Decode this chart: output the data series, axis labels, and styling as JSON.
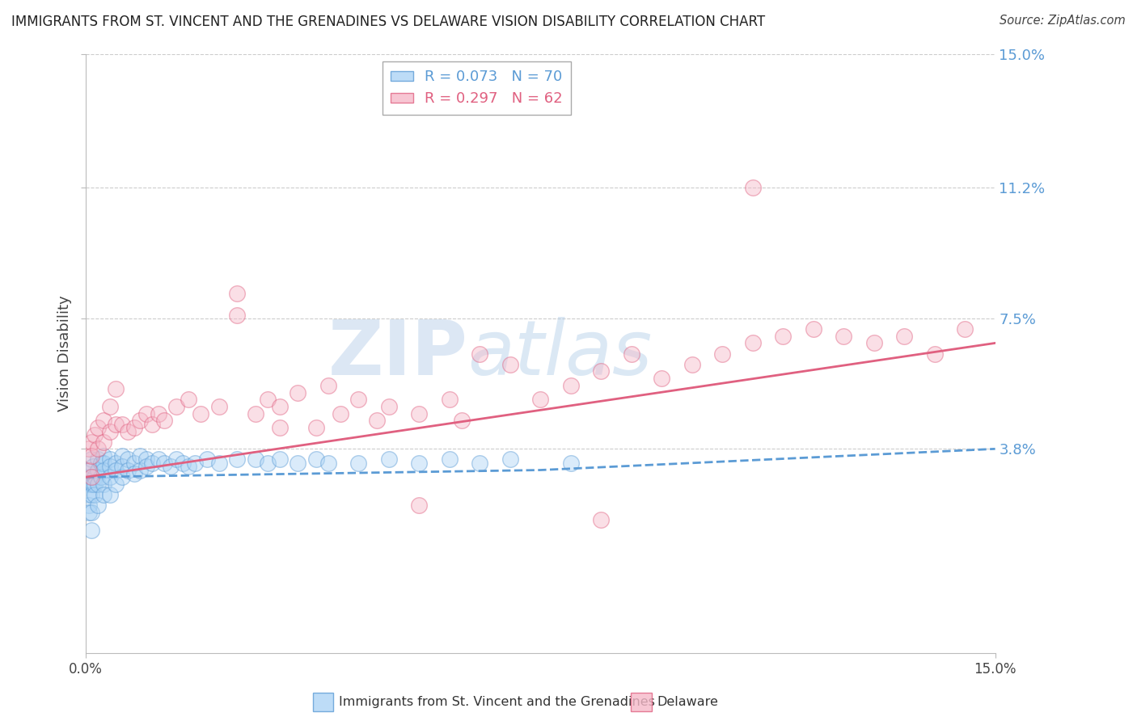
{
  "title": "IMMIGRANTS FROM ST. VINCENT AND THE GRENADINES VS DELAWARE VISION DISABILITY CORRELATION CHART",
  "source": "Source: ZipAtlas.com",
  "ylabel": "Vision Disability",
  "xmin": 0.0,
  "xmax": 0.15,
  "ymin": -0.02,
  "ymax": 0.15,
  "yticks": [
    0.038,
    0.075,
    0.112,
    0.15
  ],
  "ytick_labels": [
    "3.8%",
    "7.5%",
    "11.2%",
    "15.0%"
  ],
  "xticks": [
    0.0,
    0.15
  ],
  "xtick_labels": [
    "0.0%",
    "15.0%"
  ],
  "legend_label_blue": "R = 0.073   N = 70",
  "legend_label_pink": "R = 0.297   N = 62",
  "legend_bottom_blue": "Immigrants from St. Vincent and the Grenadines",
  "legend_bottom_pink": "Delaware",
  "blue_scatter_x": [
    0.0005,
    0.0005,
    0.0005,
    0.0005,
    0.0005,
    0.0008,
    0.001,
    0.001,
    0.001,
    0.001,
    0.001,
    0.001,
    0.0012,
    0.0012,
    0.0015,
    0.0015,
    0.0015,
    0.002,
    0.002,
    0.002,
    0.002,
    0.0025,
    0.0025,
    0.003,
    0.003,
    0.003,
    0.003,
    0.003,
    0.004,
    0.004,
    0.004,
    0.004,
    0.005,
    0.005,
    0.005,
    0.006,
    0.006,
    0.006,
    0.007,
    0.007,
    0.008,
    0.008,
    0.009,
    0.009,
    0.01,
    0.01,
    0.011,
    0.012,
    0.013,
    0.014,
    0.015,
    0.016,
    0.017,
    0.018,
    0.02,
    0.022,
    0.025,
    0.028,
    0.03,
    0.032,
    0.035,
    0.038,
    0.04,
    0.045,
    0.05,
    0.055,
    0.06,
    0.065,
    0.07,
    0.08
  ],
  "blue_scatter_y": [
    0.03,
    0.028,
    0.025,
    0.022,
    0.02,
    0.032,
    0.035,
    0.03,
    0.028,
    0.025,
    0.02,
    0.015,
    0.033,
    0.028,
    0.03,
    0.028,
    0.025,
    0.035,
    0.032,
    0.028,
    0.022,
    0.034,
    0.03,
    0.036,
    0.034,
    0.032,
    0.028,
    0.025,
    0.035,
    0.033,
    0.03,
    0.025,
    0.034,
    0.032,
    0.028,
    0.036,
    0.033,
    0.03,
    0.035,
    0.032,
    0.034,
    0.031,
    0.036,
    0.032,
    0.035,
    0.033,
    0.034,
    0.035,
    0.034,
    0.033,
    0.035,
    0.034,
    0.033,
    0.034,
    0.035,
    0.034,
    0.035,
    0.035,
    0.034,
    0.035,
    0.034,
    0.035,
    0.034,
    0.034,
    0.035,
    0.034,
    0.035,
    0.034,
    0.035,
    0.034
  ],
  "pink_scatter_x": [
    0.0005,
    0.0005,
    0.001,
    0.001,
    0.001,
    0.0015,
    0.002,
    0.002,
    0.003,
    0.003,
    0.004,
    0.004,
    0.005,
    0.005,
    0.006,
    0.007,
    0.008,
    0.009,
    0.01,
    0.011,
    0.012,
    0.013,
    0.015,
    0.017,
    0.019,
    0.022,
    0.025,
    0.025,
    0.028,
    0.03,
    0.032,
    0.032,
    0.035,
    0.038,
    0.04,
    0.042,
    0.045,
    0.048,
    0.05,
    0.055,
    0.06,
    0.062,
    0.065,
    0.07,
    0.075,
    0.08,
    0.085,
    0.09,
    0.095,
    0.1,
    0.105,
    0.11,
    0.115,
    0.12,
    0.125,
    0.13,
    0.135,
    0.14,
    0.145,
    0.055,
    0.085,
    0.11
  ],
  "pink_scatter_y": [
    0.038,
    0.032,
    0.04,
    0.036,
    0.03,
    0.042,
    0.044,
    0.038,
    0.046,
    0.04,
    0.05,
    0.043,
    0.055,
    0.045,
    0.045,
    0.043,
    0.044,
    0.046,
    0.048,
    0.045,
    0.048,
    0.046,
    0.05,
    0.052,
    0.048,
    0.05,
    0.082,
    0.076,
    0.048,
    0.052,
    0.05,
    0.044,
    0.054,
    0.044,
    0.056,
    0.048,
    0.052,
    0.046,
    0.05,
    0.048,
    0.052,
    0.046,
    0.065,
    0.062,
    0.052,
    0.056,
    0.06,
    0.065,
    0.058,
    0.062,
    0.065,
    0.068,
    0.07,
    0.072,
    0.07,
    0.068,
    0.07,
    0.065,
    0.072,
    0.022,
    0.018,
    0.112
  ],
  "blue_line_x": [
    0.0,
    0.075,
    0.15
  ],
  "blue_line_y": [
    0.03,
    0.032,
    0.038
  ],
  "pink_line_x": [
    0.0,
    0.15
  ],
  "pink_line_y": [
    0.03,
    0.068
  ],
  "watermark_zip": "ZIP",
  "watermark_atlas": "atlas",
  "scatter_size": 200,
  "scatter_alpha": 0.45,
  "blue_fill_color": "#add4f5",
  "blue_edge_color": "#5b9bd5",
  "pink_fill_color": "#f5b8c8",
  "pink_edge_color": "#e06080",
  "blue_line_color": "#5b9bd5",
  "pink_line_color": "#e06080",
  "background_color": "#ffffff",
  "grid_color": "#cccccc",
  "right_tick_color": "#5b9bd5"
}
